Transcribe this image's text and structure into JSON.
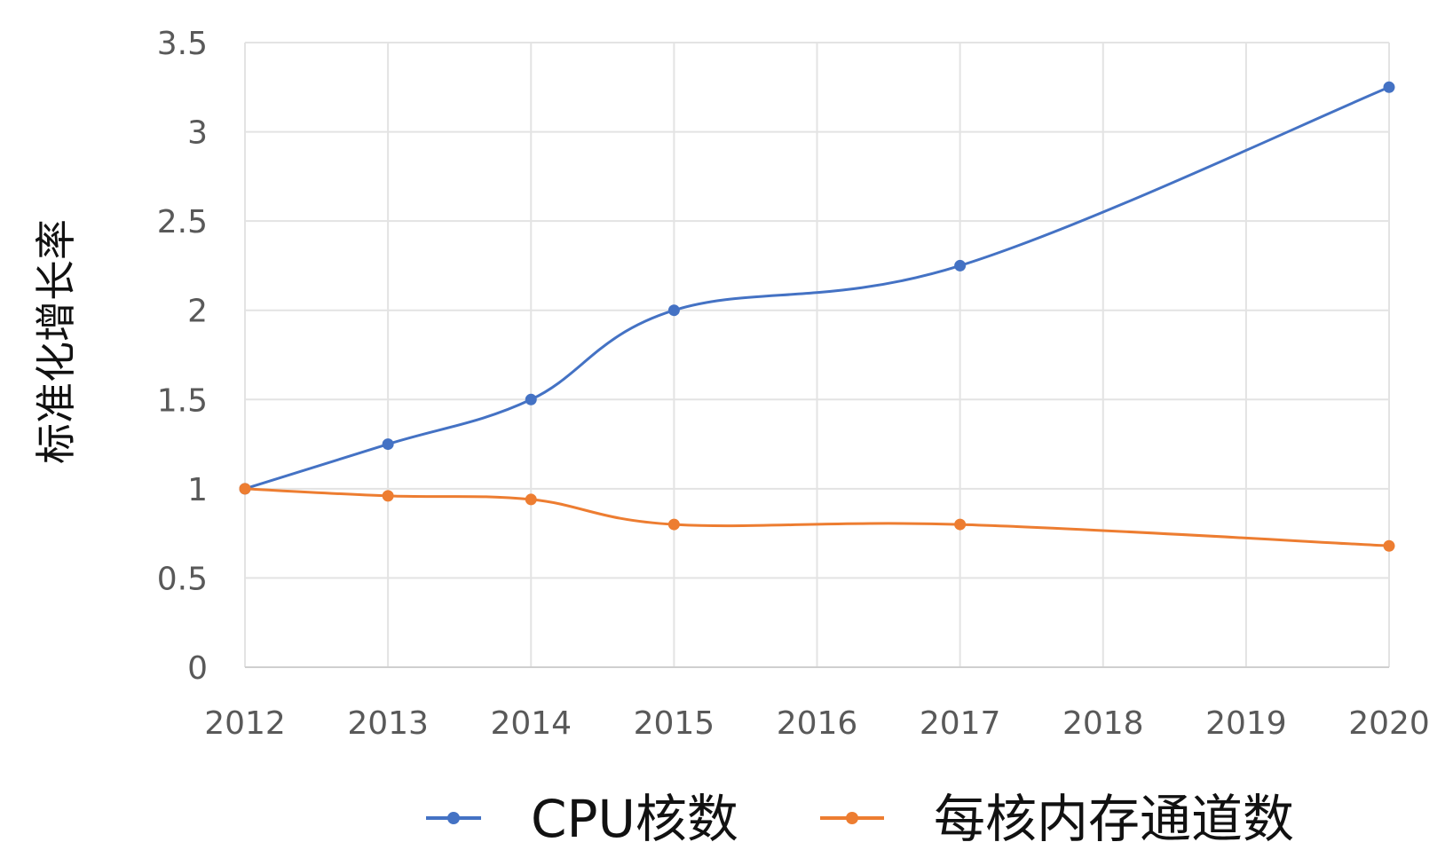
{
  "chart_data": {
    "type": "line",
    "title": "",
    "xlabel": "",
    "ylabel": "标准化增长率",
    "x": [
      "2012",
      "2013",
      "2014",
      "2015",
      "2016",
      "2017",
      "2018",
      "2019",
      "2020"
    ],
    "y_ticks": [
      "0",
      "0.5",
      "1",
      "1.5",
      "2",
      "2.5",
      "3",
      "3.5"
    ],
    "ylim": [
      0,
      3.5
    ],
    "grid": true,
    "legend_position": "bottom",
    "smooth": true,
    "series": [
      {
        "name": "CPU核数",
        "color": "#4472C4",
        "points": [
          {
            "x": "2012",
            "y": 1.0
          },
          {
            "x": "2013",
            "y": 1.25
          },
          {
            "x": "2014",
            "y": 1.5
          },
          {
            "x": "2015",
            "y": 2.0
          },
          {
            "x": "2017",
            "y": 2.25
          },
          {
            "x": "2020",
            "y": 3.25
          }
        ]
      },
      {
        "name": "每核内存通道数",
        "color": "#ED7D31",
        "points": [
          {
            "x": "2012",
            "y": 1.0
          },
          {
            "x": "2013",
            "y": 0.96
          },
          {
            "x": "2014",
            "y": 0.94
          },
          {
            "x": "2015",
            "y": 0.8
          },
          {
            "x": "2017",
            "y": 0.8
          },
          {
            "x": "2020",
            "y": 0.68
          }
        ]
      }
    ]
  }
}
